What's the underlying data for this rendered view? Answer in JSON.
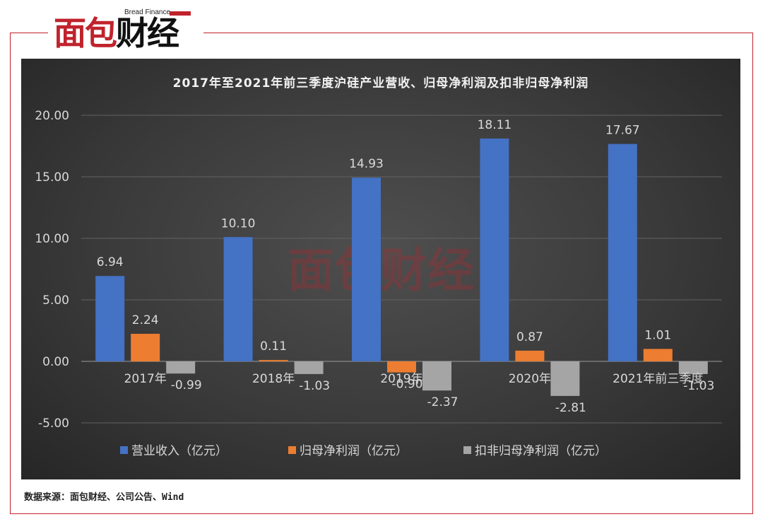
{
  "logo": {
    "en": "Bread Finance",
    "cn_red": "面包",
    "cn_black": "财经"
  },
  "source": "数据来源：面包财经、公司公告、Wind",
  "colors": {
    "revenue": "#4472c4",
    "net_profit": "#ed7d31",
    "deducted_profit": "#a5a5a5",
    "frame": "#c0232c"
  },
  "chart_data": {
    "type": "bar",
    "title": "2017年至2021年前三季度沪硅产业营收、归母净利润及扣非归母净利润",
    "categories": [
      "2017年",
      "2018年",
      "2019年",
      "2020年",
      "2021年前三季度"
    ],
    "series": [
      {
        "name": "营业收入（亿元）",
        "values": [
          6.94,
          10.1,
          14.93,
          18.11,
          17.67
        ],
        "labels": [
          "6.94",
          "10.10",
          "14.93",
          "18.11",
          "17.67"
        ]
      },
      {
        "name": "归母净利润（亿元）",
        "values": [
          2.24,
          0.11,
          -0.9,
          0.87,
          1.01
        ],
        "labels": [
          "2.24",
          "0.11",
          "-0.90",
          "0.87",
          "1.01"
        ]
      },
      {
        "name": "扣非归母净利润（亿元）",
        "values": [
          -0.99,
          -1.03,
          -2.37,
          -2.81,
          -1.03
        ],
        "labels": [
          "-0.99",
          "-1.03",
          "-2.37",
          "-2.81",
          "-1.03"
        ]
      }
    ],
    "yticks": [
      "20.00",
      "15.00",
      "10.00",
      "5.00",
      "0.00",
      "-5.00"
    ],
    "ylim": [
      -5,
      20
    ],
    "grid": true,
    "legend": "bottom",
    "watermark": "面包财经"
  }
}
